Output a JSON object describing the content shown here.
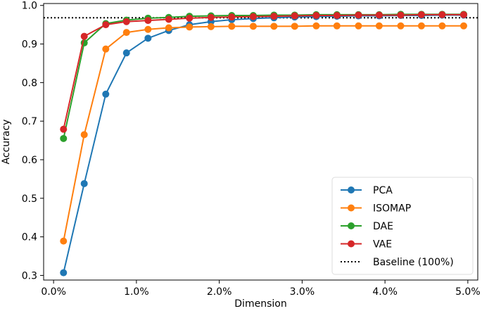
{
  "chart_data": {
    "type": "line",
    "title": "",
    "xlabel": "Dimension",
    "ylabel": "Accuracy",
    "xlim": [
      -0.0012,
      0.0512
    ],
    "ylim": [
      0.288,
      1.005
    ],
    "xticks": [
      0.0,
      0.01,
      0.02,
      0.03,
      0.04,
      0.05
    ],
    "xtick_labels": [
      "0.0%",
      "1.0%",
      "2.0%",
      "3.0%",
      "4.0%",
      "5.0%"
    ],
    "yticks": [
      0.3,
      0.4,
      0.5,
      0.6,
      0.7,
      0.8,
      0.9,
      1.0
    ],
    "ytick_labels": [
      "0.3",
      "0.4",
      "0.5",
      "0.6",
      "0.7",
      "0.8",
      "0.9",
      "1.0"
    ],
    "grid": false,
    "legend_position": "bottom-right",
    "x": [
      0.0012,
      0.0037,
      0.0063,
      0.0088,
      0.0114,
      0.0139,
      0.0164,
      0.019,
      0.0215,
      0.0241,
      0.0266,
      0.0291,
      0.0317,
      0.0342,
      0.0368,
      0.0393,
      0.0419,
      0.0444,
      0.0469,
      0.0495
    ],
    "series": [
      {
        "name": "PCA",
        "color": "#1f77b4",
        "values": [
          0.307,
          0.538,
          0.77,
          0.877,
          0.915,
          0.935,
          0.95,
          0.958,
          0.963,
          0.966,
          0.968,
          0.97,
          0.971,
          0.972,
          0.973,
          0.973,
          0.974,
          0.974,
          0.975,
          0.975
        ]
      },
      {
        "name": "ISOMAP",
        "color": "#ff7f0e",
        "values": [
          0.389,
          0.665,
          0.887,
          0.93,
          0.938,
          0.942,
          0.944,
          0.945,
          0.946,
          0.946,
          0.946,
          0.946,
          0.947,
          0.947,
          0.947,
          0.947,
          0.947,
          0.947,
          0.947,
          0.947
        ]
      },
      {
        "name": "DAE",
        "color": "#2ca02c",
        "values": [
          0.655,
          0.903,
          0.953,
          0.962,
          0.967,
          0.969,
          0.972,
          0.973,
          0.974,
          0.974,
          0.975,
          0.975,
          0.976,
          0.976,
          0.976,
          0.976,
          0.977,
          0.977,
          0.977,
          0.977
        ]
      },
      {
        "name": "VAE",
        "color": "#d62728",
        "values": [
          0.679,
          0.92,
          0.95,
          0.958,
          0.961,
          0.964,
          0.967,
          0.969,
          0.97,
          0.971,
          0.972,
          0.973,
          0.974,
          0.974,
          0.975,
          0.975,
          0.975,
          0.976,
          0.976,
          0.976
        ]
      }
    ],
    "baseline": {
      "name": "Baseline (100%)",
      "color": "#000000",
      "value": 0.968
    }
  }
}
